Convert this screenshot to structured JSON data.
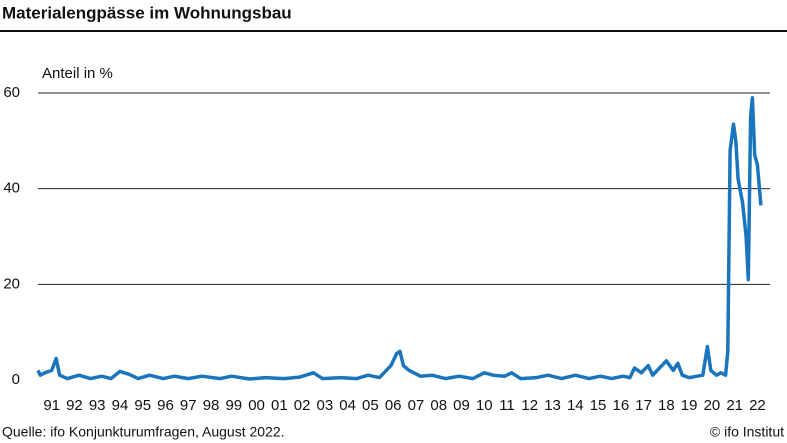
{
  "chart_data": {
    "type": "line",
    "title": "Materialengpässe im Wohnungsbau",
    "y_label": "Anteil in %",
    "source": "Quelle: ifo Konjunkturumfragen, August 2022.",
    "credit": "© ifo Institut",
    "grid": true,
    "xlim": [
      1991,
      2022.8
    ],
    "ylim": [
      0,
      60
    ],
    "yticks": [
      0,
      20,
      40,
      60
    ],
    "xticks": [
      {
        "value": 1991.6,
        "label": "91"
      },
      {
        "value": 1992.6,
        "label": "92"
      },
      {
        "value": 1993.6,
        "label": "93"
      },
      {
        "value": 1994.6,
        "label": "94"
      },
      {
        "value": 1995.6,
        "label": "95"
      },
      {
        "value": 1996.6,
        "label": "96"
      },
      {
        "value": 1997.6,
        "label": "97"
      },
      {
        "value": 1998.6,
        "label": "98"
      },
      {
        "value": 1999.6,
        "label": "99"
      },
      {
        "value": 2000.6,
        "label": "00"
      },
      {
        "value": 2001.6,
        "label": "01"
      },
      {
        "value": 2002.6,
        "label": "02"
      },
      {
        "value": 2003.6,
        "label": "03"
      },
      {
        "value": 2004.6,
        "label": "04"
      },
      {
        "value": 2005.6,
        "label": "05"
      },
      {
        "value": 2006.6,
        "label": "06"
      },
      {
        "value": 2007.6,
        "label": "07"
      },
      {
        "value": 2008.6,
        "label": "08"
      },
      {
        "value": 2009.6,
        "label": "09"
      },
      {
        "value": 2010.6,
        "label": "10"
      },
      {
        "value": 2011.6,
        "label": "11"
      },
      {
        "value": 2012.6,
        "label": "12"
      },
      {
        "value": 2013.6,
        "label": "13"
      },
      {
        "value": 2014.6,
        "label": "14"
      },
      {
        "value": 2015.6,
        "label": "15"
      },
      {
        "value": 2016.6,
        "label": "16"
      },
      {
        "value": 2017.6,
        "label": "17"
      },
      {
        "value": 2018.6,
        "label": "18"
      },
      {
        "value": 2019.6,
        "label": "19"
      },
      {
        "value": 2020.6,
        "label": "20"
      },
      {
        "value": 2021.6,
        "label": "21"
      },
      {
        "value": 2022.6,
        "label": "22"
      }
    ],
    "color": "#1a75bc",
    "x": [
      1991.0,
      1991.1,
      1991.3,
      1991.6,
      1991.8,
      1991.95,
      1992.3,
      1992.8,
      1993.3,
      1993.8,
      1994.2,
      1994.6,
      1995.0,
      1995.4,
      1995.9,
      1996.5,
      1997.0,
      1997.6,
      1998.2,
      1999.0,
      1999.5,
      2000.3,
      2001.0,
      2001.8,
      2002.5,
      2003.1,
      2003.5,
      2004.3,
      2005.0,
      2005.5,
      2006.0,
      2006.5,
      2006.75,
      2006.9,
      2007.05,
      2007.3,
      2007.8,
      2008.3,
      2008.9,
      2009.5,
      2010.1,
      2010.6,
      2011.0,
      2011.5,
      2011.8,
      2012.2,
      2012.9,
      2013.4,
      2014.0,
      2014.6,
      2015.2,
      2015.7,
      2016.2,
      2016.7,
      2017.0,
      2017.2,
      2017.5,
      2017.8,
      2018.0,
      2018.3,
      2018.6,
      2018.9,
      2019.1,
      2019.3,
      2019.6,
      2020.2,
      2020.4,
      2020.55,
      2020.8,
      2021.0,
      2021.2,
      2021.3,
      2021.4,
      2021.55,
      2021.65,
      2021.75,
      2021.95,
      2022.1,
      2022.2,
      2022.3,
      2022.38,
      2022.48,
      2022.6,
      2022.75
    ],
    "values": [
      2,
      1,
      1.5,
      2,
      4.5,
      1,
      0.3,
      1,
      0.3,
      0.8,
      0.3,
      1.8,
      1.2,
      0.3,
      1,
      0.3,
      0.8,
      0.3,
      0.8,
      0.3,
      0.8,
      0.2,
      0.5,
      0.3,
      0.6,
      1.5,
      0.3,
      0.5,
      0.3,
      1,
      0.5,
      3,
      5.5,
      6,
      3,
      2,
      0.8,
      1,
      0.3,
      0.8,
      0.3,
      1.5,
      1,
      0.8,
      1.5,
      0.3,
      0.5,
      1,
      0.3,
      1,
      0.3,
      0.8,
      0.3,
      0.8,
      0.5,
      2.5,
      1.5,
      3,
      1,
      2.5,
      4,
      2,
      3.5,
      1,
      0.5,
      1,
      7,
      2,
      1,
      1.5,
      1,
      6,
      48,
      53.5,
      50,
      42,
      37,
      30,
      21,
      55,
      59,
      47,
      45,
      36.5
    ]
  }
}
